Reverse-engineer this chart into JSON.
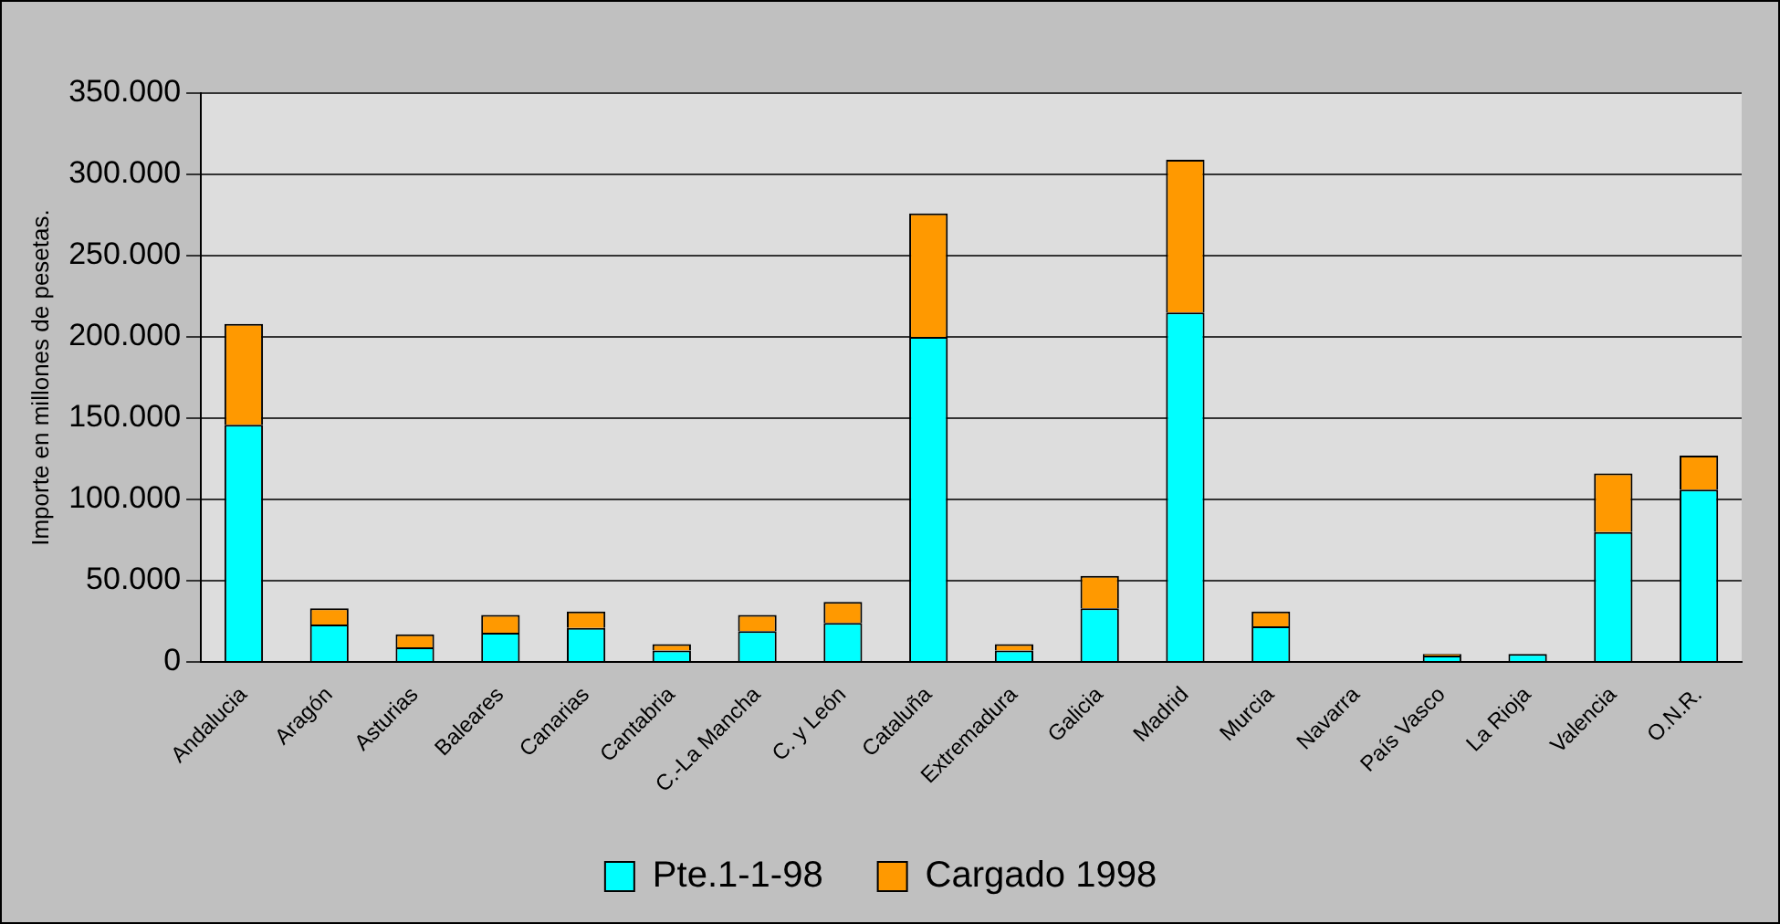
{
  "chart_data": {
    "type": "bar",
    "ylabel": "Importe en millones de pesetas.",
    "categories": [
      "Andalucia",
      "Aragón",
      "Asturias",
      "Baleares",
      "Canarias",
      "Cantabria",
      "C.-La Mancha",
      "C. y León",
      "Cataluña",
      "Extremadura",
      "Galicia",
      "Madrid",
      "Murcia",
      "Navarra",
      "País Vasco",
      "La Rioja",
      "Valencia",
      "O.N.R."
    ],
    "series": [
      {
        "name": "Pte.1-1-98",
        "color": "#00ffff",
        "values": [
          146000,
          23000,
          9000,
          18000,
          21000,
          7000,
          19000,
          24000,
          200000,
          7000,
          33000,
          215000,
          22000,
          0,
          4000,
          5000,
          80000,
          106000
        ]
      },
      {
        "name": "Cargado 1998",
        "color": "#ff9900",
        "values": [
          62000,
          10000,
          8000,
          11000,
          10000,
          4000,
          10000,
          13000,
          76000,
          4000,
          20000,
          94000,
          9000,
          null,
          1000,
          null,
          36000,
          21000
        ]
      }
    ],
    "stacked": true,
    "ylim": [
      0,
      350000
    ],
    "yticks": [
      {
        "value": 0,
        "label": "0"
      },
      {
        "value": 50000,
        "label": "50.000"
      },
      {
        "value": 100000,
        "label": "100.000"
      },
      {
        "value": 150000,
        "label": "150.000"
      },
      {
        "value": 200000,
        "label": "200.000"
      },
      {
        "value": 250000,
        "label": "250.000"
      },
      {
        "value": 300000,
        "label": "300.000"
      },
      {
        "value": 350000,
        "label": "350.000"
      }
    ],
    "grid": "y",
    "legend": "bottom"
  }
}
